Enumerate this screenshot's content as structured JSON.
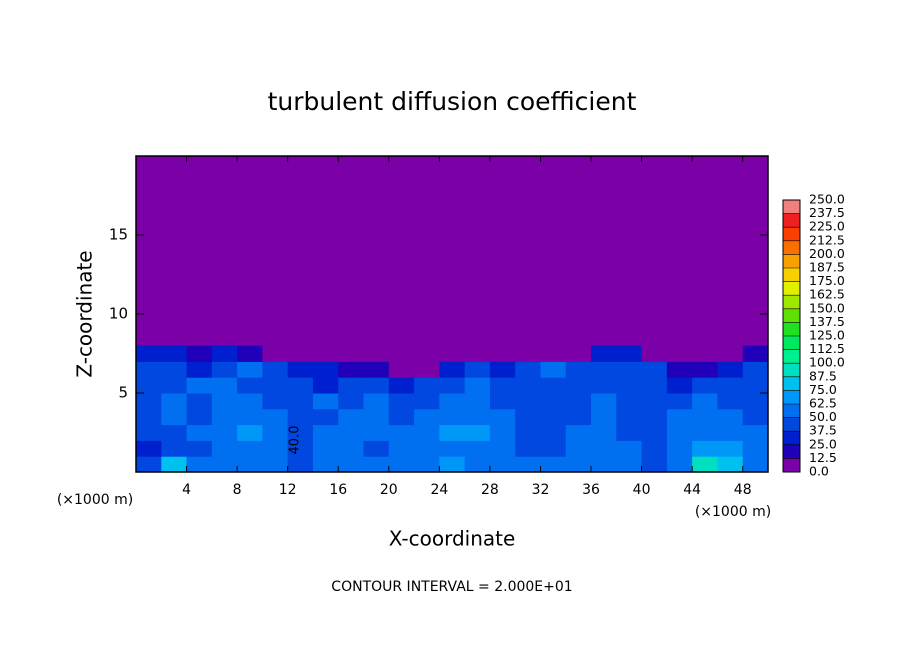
{
  "chart_data": {
    "type": "contour",
    "title": "turbulent diffusion coefficient",
    "x_label": "X-coordinate",
    "y_label": "Z-coordinate",
    "x_unit_left": "(×1000 m)",
    "x_unit_right": "(×1000 m)",
    "footer": "CONTOUR INTERVAL = 2.000E+01",
    "annotation": "40.0",
    "xlim": [
      0,
      50
    ],
    "ylim": [
      0,
      20
    ],
    "xticks": [
      4,
      8,
      12,
      16,
      20,
      24,
      28,
      32,
      36,
      40,
      44,
      48
    ],
    "yticks": [
      5,
      10,
      15
    ],
    "x": [
      1,
      3,
      5,
      7,
      9,
      11,
      13,
      15,
      17,
      19,
      21,
      23,
      25,
      27,
      29,
      31,
      33,
      35,
      37,
      39,
      41,
      43,
      45,
      47,
      49
    ],
    "z": [
      0.5,
      1.5,
      2.5,
      3.5,
      4.5,
      5.5,
      6.5,
      7.5
    ],
    "values": [
      [
        40,
        80,
        50,
        55,
        60,
        50,
        45,
        60,
        55,
        50,
        55,
        60,
        65,
        60,
        55,
        50,
        50,
        60,
        55,
        50,
        45,
        55,
        90,
        80,
        60
      ],
      [
        35,
        40,
        45,
        55,
        60,
        55,
        40,
        60,
        55,
        45,
        50,
        55,
        60,
        55,
        50,
        45,
        45,
        55,
        60,
        50,
        45,
        50,
        65,
        70,
        55
      ],
      [
        40,
        45,
        50,
        60,
        65,
        55,
        40,
        55,
        60,
        50,
        55,
        60,
        70,
        65,
        55,
        45,
        40,
        50,
        55,
        45,
        40,
        55,
        60,
        55,
        50
      ],
      [
        45,
        50,
        40,
        55,
        60,
        50,
        45,
        45,
        55,
        60,
        45,
        50,
        55,
        60,
        50,
        40,
        40,
        45,
        55,
        40,
        45,
        50,
        55,
        60,
        45
      ],
      [
        40,
        50,
        45,
        60,
        55,
        45,
        40,
        50,
        45,
        55,
        40,
        45,
        50,
        55,
        45,
        40,
        40,
        45,
        50,
        45,
        40,
        45,
        50,
        40,
        45
      ],
      [
        45,
        40,
        55,
        60,
        45,
        40,
        45,
        35,
        40,
        45,
        35,
        40,
        45,
        50,
        40,
        40,
        45,
        40,
        45,
        40,
        45,
        35,
        40,
        45,
        40
      ],
      [
        40,
        45,
        35,
        45,
        50,
        40,
        35,
        30,
        20,
        15,
        10,
        5,
        30,
        40,
        30,
        45,
        50,
        45,
        40,
        45,
        40,
        20,
        15,
        30,
        40
      ],
      [
        30,
        25,
        20,
        25,
        20,
        10,
        10,
        0,
        0,
        0,
        0,
        0,
        0,
        0,
        0,
        0,
        0,
        0,
        25,
        25,
        10,
        0,
        0,
        10,
        20
      ]
    ],
    "levels": [
      {
        "value": 0,
        "label": "0.0"
      },
      {
        "value": 12.5,
        "label": "12.5"
      },
      {
        "value": 25,
        "label": "25.0"
      },
      {
        "value": 37.5,
        "label": "37.5"
      },
      {
        "value": 50,
        "label": "50.0"
      },
      {
        "value": 62.5,
        "label": "62.5"
      },
      {
        "value": 75,
        "label": "75.0"
      },
      {
        "value": 87.5,
        "label": "87.5"
      },
      {
        "value": 100,
        "label": "100.0"
      },
      {
        "value": 112.5,
        "label": "112.5"
      },
      {
        "value": 125,
        "label": "125.0"
      },
      {
        "value": 137.5,
        "label": "137.5"
      },
      {
        "value": 150,
        "label": "150.0"
      },
      {
        "value": 162.5,
        "label": "162.5"
      },
      {
        "value": 175,
        "label": "175.0"
      },
      {
        "value": 187.5,
        "label": "187.5"
      },
      {
        "value": 200,
        "label": "200.0"
      },
      {
        "value": 212.5,
        "label": "212.5"
      },
      {
        "value": 225,
        "label": "225.0"
      },
      {
        "value": 237.5,
        "label": "237.5"
      },
      {
        "value": 250,
        "label": "250.0"
      }
    ],
    "colors": [
      "#7b00a8",
      "#2000b8",
      "#0020d0",
      "#0048e0",
      "#0070f0",
      "#0098f8",
      "#00c0f0",
      "#00e0c0",
      "#00f090",
      "#00e860",
      "#20e020",
      "#60e000",
      "#a0e800",
      "#e0f000",
      "#f8d000",
      "#f8a000",
      "#f87000",
      "#f84000",
      "#f02020",
      "#f08080"
    ]
  }
}
